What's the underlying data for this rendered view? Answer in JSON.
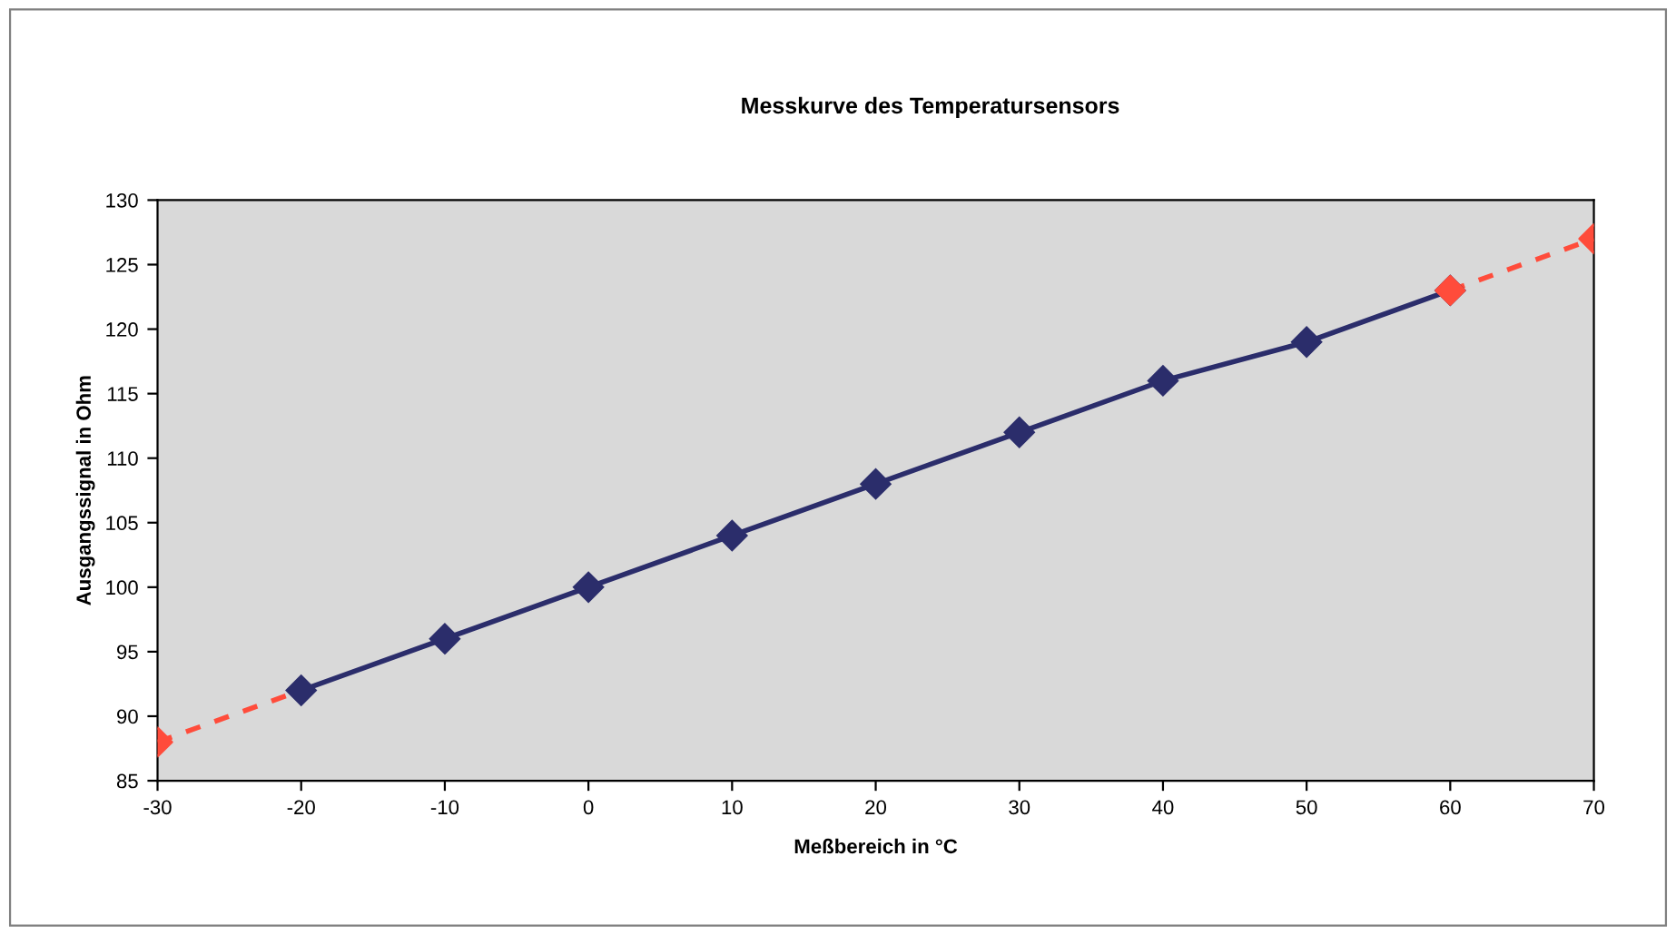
{
  "chart_data": {
    "type": "line",
    "title": "Messkurve des Temperatursensors",
    "xlabel": "Meßbereich in °C",
    "ylabel": "Ausgangssignal in Ohm",
    "xlim": [
      -30,
      70
    ],
    "xticks": [
      -30,
      -20,
      -10,
      0,
      10,
      20,
      30,
      40,
      50,
      60,
      70
    ],
    "ylim": [
      85,
      130
    ],
    "yticks": [
      85,
      90,
      95,
      100,
      105,
      110,
      115,
      120,
      125,
      130
    ],
    "grid": false,
    "legend": false,
    "series": [
      {
        "type": "line",
        "color": "#ff4c3b",
        "line_style": "dashed",
        "marker": "none",
        "x": [
          -30,
          -20
        ],
        "values": [
          88,
          92
        ]
      },
      {
        "type": "line",
        "color": "#ff4c3b",
        "line_style": "dashed",
        "marker": "none",
        "x": [
          60,
          70
        ],
        "values": [
          123,
          127
        ]
      },
      {
        "type": "line",
        "color": "#2b2d6b",
        "line_style": "solid",
        "marker": "diamond",
        "x": [
          -20,
          -10,
          0,
          10,
          20,
          30,
          40,
          50,
          60
        ],
        "values": [
          92,
          96,
          100,
          104,
          108,
          112,
          116,
          119,
          123
        ]
      },
      {
        "type": "scatter",
        "color": "#ff4c3b",
        "marker": "diamond",
        "x": [
          -30,
          60,
          70
        ],
        "values": [
          88,
          123,
          127
        ]
      }
    ]
  }
}
